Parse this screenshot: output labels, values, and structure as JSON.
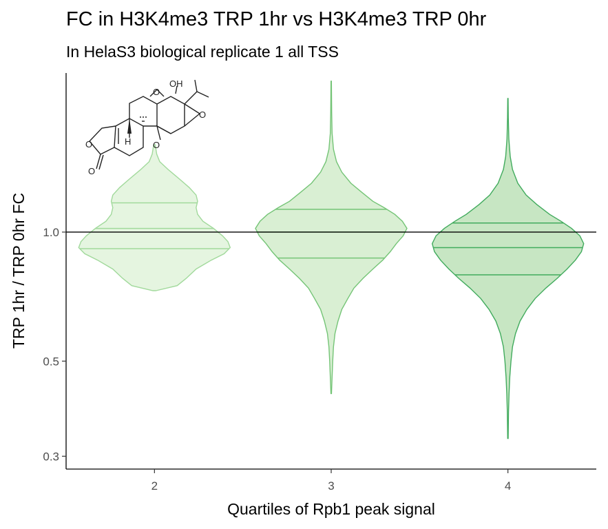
{
  "chart_data": {
    "type": "violin",
    "title": "FC in H3K4me3 TRP 1hr vs H3K4me3 TRP 0hr",
    "subtitle": "In HelaS3 biological replicate 1 all TSS",
    "xlabel": "Quartiles of Rpb1 peak signal",
    "ylabel": "TRP 1hr / TRP 0hr FC",
    "y_scale": "log",
    "ylim": [
      0.28,
      2.35
    ],
    "y_ticks": [
      0.3,
      0.5,
      1.0
    ],
    "y_tick_labels": [
      "0.3",
      "0.5",
      "1.0"
    ],
    "reference_line": 1.0,
    "categories": [
      "2",
      "3",
      "4"
    ],
    "violins": [
      {
        "category": "2",
        "fill": "#e5f5e0",
        "stroke": "#a1d99b",
        "min": 0.73,
        "max": 1.6,
        "quantiles": [
          0.915,
          1.02,
          1.17
        ],
        "profile": [
          [
            0.73,
            0.02
          ],
          [
            0.75,
            0.3
          ],
          [
            0.78,
            0.42
          ],
          [
            0.82,
            0.55
          ],
          [
            0.86,
            0.75
          ],
          [
            0.89,
            0.92
          ],
          [
            0.92,
            1.0
          ],
          [
            0.95,
            0.97
          ],
          [
            0.98,
            0.9
          ],
          [
            1.02,
            0.78
          ],
          [
            1.06,
            0.64
          ],
          [
            1.1,
            0.57
          ],
          [
            1.14,
            0.55
          ],
          [
            1.18,
            0.57
          ],
          [
            1.22,
            0.55
          ],
          [
            1.27,
            0.46
          ],
          [
            1.33,
            0.33
          ],
          [
            1.4,
            0.18
          ],
          [
            1.46,
            0.07
          ],
          [
            1.52,
            0.03
          ],
          [
            1.6,
            0.01
          ]
        ]
      },
      {
        "category": "3",
        "fill": "#d9efd3",
        "stroke": "#74c476",
        "min": 0.42,
        "max": 2.25,
        "quantiles": [
          0.87,
          1.0,
          1.13
        ],
        "profile": [
          [
            0.42,
            0.004
          ],
          [
            0.45,
            0.01
          ],
          [
            0.5,
            0.02
          ],
          [
            0.54,
            0.03
          ],
          [
            0.58,
            0.05
          ],
          [
            0.62,
            0.09
          ],
          [
            0.66,
            0.14
          ],
          [
            0.7,
            0.22
          ],
          [
            0.74,
            0.3
          ],
          [
            0.78,
            0.42
          ],
          [
            0.82,
            0.55
          ],
          [
            0.86,
            0.68
          ],
          [
            0.9,
            0.78
          ],
          [
            0.94,
            0.86
          ],
          [
            0.98,
            0.95
          ],
          [
            1.02,
            1.0
          ],
          [
            1.06,
            0.94
          ],
          [
            1.1,
            0.84
          ],
          [
            1.14,
            0.7
          ],
          [
            1.18,
            0.55
          ],
          [
            1.24,
            0.4
          ],
          [
            1.3,
            0.26
          ],
          [
            1.38,
            0.14
          ],
          [
            1.46,
            0.07
          ],
          [
            1.56,
            0.03
          ],
          [
            1.7,
            0.012
          ],
          [
            1.9,
            0.006
          ],
          [
            2.25,
            0.003
          ]
        ]
      },
      {
        "category": "4",
        "fill": "#c7e6c3",
        "stroke": "#41ab5d",
        "min": 0.33,
        "max": 2.05,
        "quantiles": [
          0.795,
          0.92,
          1.05
        ],
        "profile": [
          [
            0.33,
            0.003
          ],
          [
            0.38,
            0.008
          ],
          [
            0.42,
            0.015
          ],
          [
            0.46,
            0.025
          ],
          [
            0.5,
            0.04
          ],
          [
            0.54,
            0.06
          ],
          [
            0.58,
            0.1
          ],
          [
            0.62,
            0.16
          ],
          [
            0.66,
            0.25
          ],
          [
            0.7,
            0.36
          ],
          [
            0.74,
            0.5
          ],
          [
            0.78,
            0.65
          ],
          [
            0.82,
            0.78
          ],
          [
            0.86,
            0.89
          ],
          [
            0.9,
            0.97
          ],
          [
            0.94,
            1.0
          ],
          [
            0.98,
            0.95
          ],
          [
            1.02,
            0.84
          ],
          [
            1.06,
            0.7
          ],
          [
            1.1,
            0.55
          ],
          [
            1.16,
            0.38
          ],
          [
            1.22,
            0.24
          ],
          [
            1.3,
            0.13
          ],
          [
            1.4,
            0.06
          ],
          [
            1.5,
            0.03
          ],
          [
            1.65,
            0.012
          ],
          [
            1.85,
            0.005
          ],
          [
            2.05,
            0.002
          ]
        ]
      }
    ],
    "grid": false,
    "legend": "none"
  },
  "inset": {
    "icon": "triptolide-structure-icon",
    "labels": {
      "hydroxyl": "OH",
      "hydrogen": "H"
    }
  }
}
